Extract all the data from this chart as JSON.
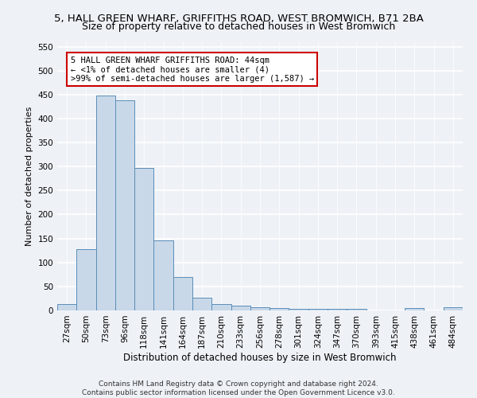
{
  "title1": "5, HALL GREEN WHARF, GRIFFITHS ROAD, WEST BROMWICH, B71 2BA",
  "title2": "Size of property relative to detached houses in West Bromwich",
  "xlabel": "Distribution of detached houses by size in West Bromwich",
  "ylabel": "Number of detached properties",
  "categories": [
    "27sqm",
    "50sqm",
    "73sqm",
    "96sqm",
    "118sqm",
    "141sqm",
    "164sqm",
    "187sqm",
    "210sqm",
    "233sqm",
    "256sqm",
    "278sqm",
    "301sqm",
    "324sqm",
    "347sqm",
    "370sqm",
    "393sqm",
    "415sqm",
    "438sqm",
    "461sqm",
    "484sqm"
  ],
  "values": [
    13,
    127,
    448,
    438,
    297,
    146,
    70,
    27,
    13,
    10,
    7,
    5,
    3,
    3,
    4,
    3,
    0,
    0,
    5,
    0,
    6
  ],
  "bar_color": "#c8d8e8",
  "bar_edge_color": "#5b8db8",
  "annotation_line1": "5 HALL GREEN WHARF GRIFFITHS ROAD: 44sqm",
  "annotation_line2": "← <1% of detached houses are smaller (4)",
  "annotation_line3": ">99% of semi-detached houses are larger (1,587) →",
  "annotation_box_color": "#ffffff",
  "annotation_box_edge_color": "#cc0000",
  "footer1": "Contains HM Land Registry data © Crown copyright and database right 2024.",
  "footer2": "Contains public sector information licensed under the Open Government Licence v3.0.",
  "ylim": [
    0,
    560
  ],
  "yticks": [
    0,
    50,
    100,
    150,
    200,
    250,
    300,
    350,
    400,
    450,
    500,
    550
  ],
  "bg_color": "#eef2f7",
  "plot_bg_color": "#eef2f7",
  "grid_color": "#ffffff",
  "title1_fontsize": 9.5,
  "title2_fontsize": 9,
  "xlabel_fontsize": 8.5,
  "ylabel_fontsize": 8,
  "tick_fontsize": 7.5,
  "annotation_fontsize": 7.5,
  "footer_fontsize": 6.5
}
